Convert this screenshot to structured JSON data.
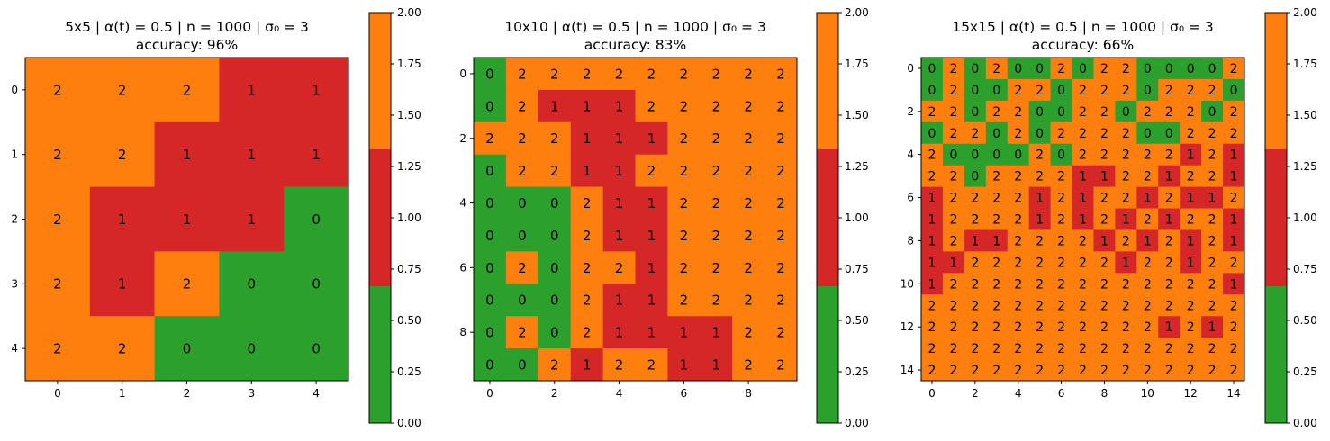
{
  "colors": {
    "0": "#2ca02c",
    "1": "#d62728",
    "2": "#ff7f0e",
    "frame": "#000000"
  },
  "colorbar": {
    "ticks": [
      "0.00",
      "0.25",
      "0.50",
      "0.75",
      "1.00",
      "1.25",
      "1.50",
      "1.75",
      "2.00"
    ],
    "range": [
      0,
      2
    ],
    "bands": [
      {
        "from": 0.0,
        "to": 0.6667,
        "color": "#2ca02c"
      },
      {
        "from": 0.6667,
        "to": 1.3333,
        "color": "#d62728"
      },
      {
        "from": 1.3333,
        "to": 2.0,
        "color": "#ff7f0e"
      }
    ]
  },
  "chart_data": [
    {
      "type": "heatmap",
      "title_line1": "5x5 | α(t) = 0.5 | n = 1000 | σ₀ = 3",
      "title_line2": "accuracy: 96%",
      "size": 5,
      "xticks": [
        "0",
        "1",
        "2",
        "3",
        "4"
      ],
      "yticks": [
        "0",
        "1",
        "2",
        "3",
        "4"
      ],
      "grid": [
        [
          2,
          2,
          2,
          1,
          1
        ],
        [
          2,
          2,
          1,
          1,
          1
        ],
        [
          2,
          1,
          1,
          1,
          0
        ],
        [
          2,
          1,
          2,
          0,
          0
        ],
        [
          2,
          2,
          0,
          0,
          0
        ]
      ]
    },
    {
      "type": "heatmap",
      "title_line1": "10x10 | α(t) = 0.5 | n = 1000 | σ₀ = 3",
      "title_line2": "accuracy: 83%",
      "size": 10,
      "xticks": [
        "0",
        "2",
        "4",
        "6",
        "8"
      ],
      "yticks": [
        "0",
        "2",
        "4",
        "6",
        "8"
      ],
      "grid": [
        [
          0,
          2,
          2,
          2,
          2,
          2,
          2,
          2,
          2,
          2
        ],
        [
          0,
          2,
          1,
          1,
          1,
          2,
          2,
          2,
          2,
          2
        ],
        [
          2,
          2,
          2,
          1,
          1,
          1,
          2,
          2,
          2,
          2
        ],
        [
          0,
          2,
          2,
          1,
          1,
          2,
          2,
          2,
          2,
          2
        ],
        [
          0,
          0,
          0,
          2,
          1,
          1,
          2,
          2,
          2,
          2
        ],
        [
          0,
          0,
          0,
          2,
          1,
          1,
          2,
          2,
          2,
          2
        ],
        [
          0,
          2,
          0,
          2,
          2,
          1,
          2,
          2,
          2,
          2
        ],
        [
          0,
          0,
          0,
          2,
          1,
          1,
          2,
          2,
          2,
          2
        ],
        [
          0,
          2,
          0,
          2,
          1,
          1,
          1,
          1,
          2,
          2
        ],
        [
          0,
          0,
          2,
          1,
          2,
          2,
          1,
          1,
          2,
          2
        ]
      ]
    },
    {
      "type": "heatmap",
      "title_line1": "15x15 | α(t) = 0.5 | n = 1000 | σ₀ = 3",
      "title_line2": "accuracy: 66%",
      "size": 15,
      "xticks": [
        "0",
        "2",
        "4",
        "6",
        "8",
        "10",
        "12",
        "14"
      ],
      "yticks": [
        "0",
        "2",
        "4",
        "6",
        "8",
        "10",
        "12",
        "14"
      ],
      "grid": [
        [
          0,
          2,
          0,
          2,
          0,
          0,
          2,
          0,
          2,
          2,
          0,
          0,
          0,
          0,
          2
        ],
        [
          0,
          2,
          0,
          0,
          2,
          2,
          0,
          2,
          2,
          2,
          0,
          2,
          2,
          2,
          0
        ],
        [
          2,
          2,
          0,
          2,
          2,
          0,
          0,
          2,
          2,
          0,
          2,
          2,
          2,
          0,
          2
        ],
        [
          0,
          2,
          2,
          0,
          2,
          0,
          2,
          2,
          2,
          2,
          0,
          0,
          2,
          2,
          2
        ],
        [
          2,
          0,
          0,
          0,
          0,
          2,
          0,
          2,
          2,
          2,
          2,
          2,
          1,
          2,
          1
        ],
        [
          2,
          2,
          0,
          2,
          2,
          2,
          2,
          1,
          1,
          2,
          2,
          1,
          2,
          2,
          1
        ],
        [
          1,
          2,
          2,
          2,
          2,
          1,
          2,
          1,
          2,
          2,
          1,
          2,
          1,
          1,
          2
        ],
        [
          1,
          2,
          2,
          2,
          2,
          1,
          2,
          1,
          2,
          1,
          2,
          1,
          2,
          2,
          1
        ],
        [
          1,
          2,
          1,
          1,
          2,
          2,
          2,
          2,
          1,
          2,
          1,
          2,
          1,
          2,
          1
        ],
        [
          1,
          1,
          2,
          2,
          2,
          2,
          2,
          2,
          2,
          1,
          2,
          2,
          1,
          2,
          2
        ],
        [
          1,
          2,
          2,
          2,
          2,
          2,
          2,
          2,
          2,
          2,
          2,
          2,
          2,
          2,
          1
        ],
        [
          2,
          2,
          2,
          2,
          2,
          2,
          2,
          2,
          2,
          2,
          2,
          2,
          2,
          2,
          2
        ],
        [
          2,
          2,
          2,
          2,
          2,
          2,
          2,
          2,
          2,
          2,
          2,
          1,
          2,
          1,
          2
        ],
        [
          2,
          2,
          2,
          2,
          2,
          2,
          2,
          2,
          2,
          2,
          2,
          2,
          2,
          2,
          2
        ],
        [
          2,
          2,
          2,
          2,
          2,
          2,
          2,
          2,
          2,
          2,
          2,
          2,
          2,
          2,
          2
        ]
      ]
    }
  ]
}
